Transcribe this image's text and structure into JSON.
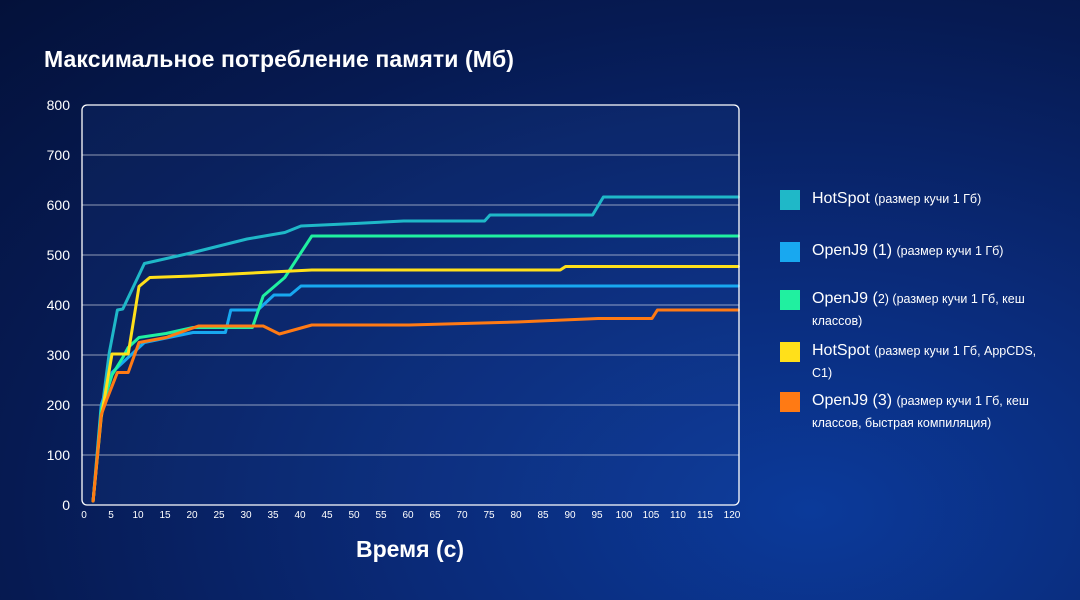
{
  "chart_data": {
    "type": "line",
    "title": "Максимальное потребление памяти (Мб)",
    "xlabel": "Время (с)",
    "ylabel": "",
    "xlim": [
      0,
      120
    ],
    "ylim": [
      0,
      800
    ],
    "yticks": [
      "0",
      "100",
      "200",
      "300",
      "400",
      "500",
      "600",
      "700",
      "800"
    ],
    "xticks": [
      "0",
      "5",
      "10",
      "15",
      "20",
      "25",
      "30",
      "35",
      "40",
      "45",
      "50",
      "55",
      "60",
      "65",
      "70",
      "75",
      "80",
      "85",
      "90",
      "95",
      "100",
      "105",
      "110",
      "115",
      "120"
    ],
    "grid": true,
    "legend_position": "right",
    "series": [
      {
        "name": "HotSpot",
        "name_note": "(размер кучи 1 Гб)",
        "color": "#1fb8c8",
        "points": [
          [
            1.5,
            8
          ],
          [
            3,
            180
          ],
          [
            4.5,
            305
          ],
          [
            6,
            390
          ],
          [
            7,
            392
          ],
          [
            11,
            483
          ],
          [
            20,
            505
          ],
          [
            30,
            532
          ],
          [
            37,
            545
          ],
          [
            40,
            558
          ],
          [
            50,
            563
          ],
          [
            59,
            568
          ],
          [
            74,
            568
          ],
          [
            75,
            580
          ],
          [
            94,
            580
          ],
          [
            96,
            616
          ],
          [
            121,
            616
          ]
        ]
      },
      {
        "name": "OpenJ9 (1)",
        "name_note": "(размер кучи 1 Гб)",
        "color": "#18a8f0",
        "points": [
          [
            1.5,
            8
          ],
          [
            3,
            200
          ],
          [
            5,
            265
          ],
          [
            7,
            285
          ],
          [
            9,
            305
          ],
          [
            11,
            325
          ],
          [
            20,
            345
          ],
          [
            26,
            345
          ],
          [
            27,
            390
          ],
          [
            32,
            390
          ],
          [
            35,
            420
          ],
          [
            38,
            420
          ],
          [
            40,
            438
          ],
          [
            121,
            438
          ]
        ]
      },
      {
        "name": "OpenJ9 (",
        "name_sub": "2",
        "name_note": ") (размер кучи 1 Гб, кеш классов)",
        "color": "#20f0a0",
        "points": [
          [
            1.5,
            8
          ],
          [
            3,
            190
          ],
          [
            5,
            260
          ],
          [
            7,
            295
          ],
          [
            8,
            315
          ],
          [
            10,
            335
          ],
          [
            15,
            343
          ],
          [
            20,
            355
          ],
          [
            31,
            355
          ],
          [
            33,
            418
          ],
          [
            37,
            455
          ],
          [
            42,
            538
          ],
          [
            121,
            538
          ]
        ]
      },
      {
        "name": "HotSpot",
        "name_note": "(размер кучи 1 Гб, AppCDS, C1)",
        "color": "#ffe01a",
        "points": [
          [
            1.5,
            8
          ],
          [
            3,
            175
          ],
          [
            5,
            302
          ],
          [
            8,
            302
          ],
          [
            10,
            437
          ],
          [
            12,
            455
          ],
          [
            20,
            458
          ],
          [
            42,
            470
          ],
          [
            88,
            470
          ],
          [
            89,
            477
          ],
          [
            121,
            477
          ]
        ]
      },
      {
        "name": "OpenJ9 (3)",
        "name_note": "(размер кучи 1 Гб, кеш классов, быстрая компиляция)",
        "color": "#ff7a14",
        "points": [
          [
            1.5,
            8
          ],
          [
            3,
            180
          ],
          [
            4,
            210
          ],
          [
            6,
            265
          ],
          [
            8,
            265
          ],
          [
            10,
            325
          ],
          [
            15,
            335
          ],
          [
            21,
            358
          ],
          [
            33,
            358
          ],
          [
            36,
            342
          ],
          [
            42,
            360
          ],
          [
            60,
            360
          ],
          [
            80,
            366
          ],
          [
            95,
            373
          ],
          [
            105,
            373
          ],
          [
            106,
            390
          ],
          [
            121,
            390
          ]
        ]
      }
    ]
  }
}
